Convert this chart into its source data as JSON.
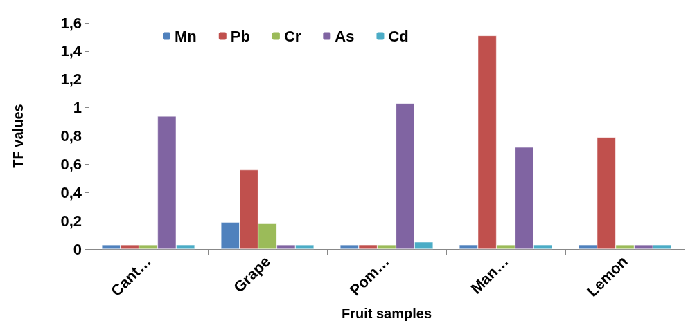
{
  "chart_data": {
    "type": "bar",
    "xlabel": "Fruit samples",
    "ylabel": "TF values",
    "categories": [
      "Cant…",
      "Grape",
      "Pom…",
      "Man…",
      "Lemon"
    ],
    "series": [
      {
        "name": "Mn",
        "color": "#4f81bd",
        "values": [
          0.03,
          0.19,
          0.03,
          0.03,
          0.03
        ]
      },
      {
        "name": "Pb",
        "color": "#c0504d",
        "values": [
          0.03,
          0.56,
          0.03,
          1.51,
          0.79
        ]
      },
      {
        "name": "Cr",
        "color": "#9bbb59",
        "values": [
          0.03,
          0.18,
          0.03,
          0.03,
          0.03
        ]
      },
      {
        "name": "As",
        "color": "#8064a2",
        "values": [
          0.94,
          0.03,
          1.03,
          0.72,
          0.03
        ]
      },
      {
        "name": "Cd",
        "color": "#4bacc6",
        "values": [
          0.03,
          0.03,
          0.05,
          0.03,
          0.03
        ]
      }
    ],
    "ylim": [
      0,
      1.6
    ],
    "yticks": [
      0,
      {
        "value": 0.2,
        "label": "0,2"
      },
      {
        "value": 0.4,
        "label": "0,4"
      },
      {
        "value": 0.6,
        "label": "0,6"
      },
      {
        "value": 0.8,
        "label": "0,8"
      },
      1,
      {
        "value": 1.2,
        "label": "1,2"
      },
      {
        "value": 1.4,
        "label": "1,4"
      },
      {
        "value": 1.6,
        "label": "1,6"
      }
    ],
    "grid": false,
    "legend": "top"
  }
}
